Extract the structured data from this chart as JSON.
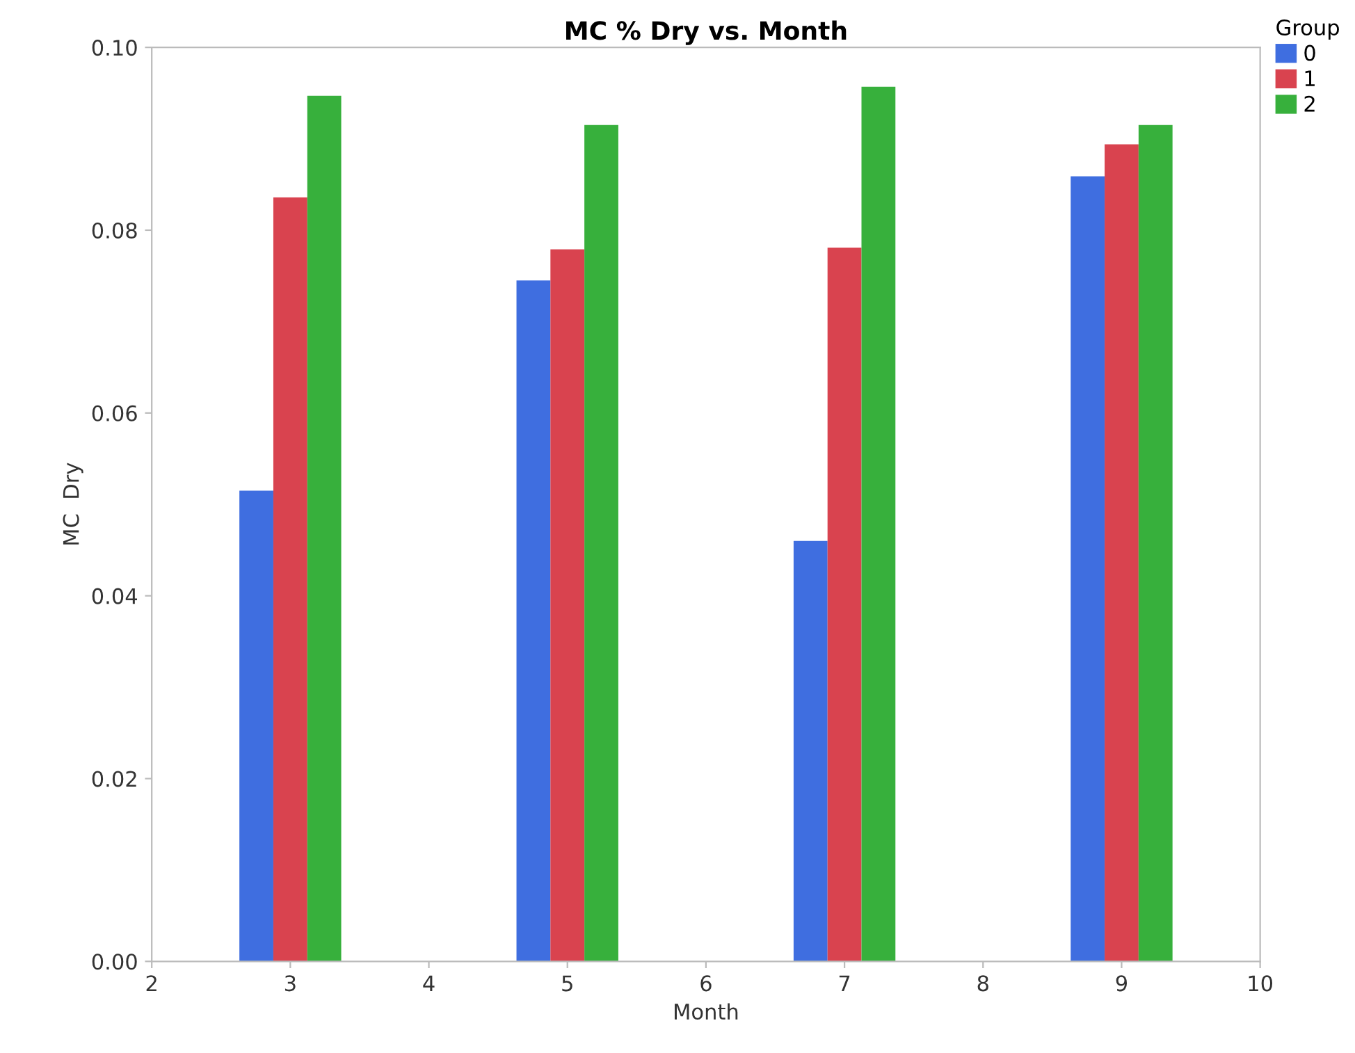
{
  "chart_data": {
    "type": "bar",
    "title": "MC % Dry vs. Month",
    "xlabel": "Month",
    "ylabel": "MC  Dry",
    "legend_title": "Group",
    "x": [
      3,
      5,
      7,
      9
    ],
    "series": [
      {
        "name": "0",
        "color": "#3f6ee0",
        "values": [
          0.0515,
          0.0745,
          0.046,
          0.0859
        ]
      },
      {
        "name": "1",
        "color": "#d9434f",
        "values": [
          0.0836,
          0.0779,
          0.0781,
          0.0894
        ]
      },
      {
        "name": "2",
        "color": "#37b03c",
        "values": [
          0.0947,
          0.0915,
          0.0957,
          0.0915
        ]
      }
    ],
    "xlim": [
      2,
      10
    ],
    "xticks": [
      2,
      3,
      4,
      5,
      6,
      7,
      8,
      9,
      10
    ],
    "ylim": [
      0,
      0.1
    ],
    "yticks": [
      {
        "value": 0,
        "label": "0.00"
      },
      {
        "value": 0.02,
        "label": "0.02"
      },
      {
        "value": 0.04,
        "label": "0.04"
      },
      {
        "value": 0.06,
        "label": "0.06"
      },
      {
        "value": 0.08,
        "label": "0.08"
      },
      {
        "value": 0.1,
        "label": "0.10"
      }
    ],
    "grid": false,
    "legend": "top right"
  }
}
